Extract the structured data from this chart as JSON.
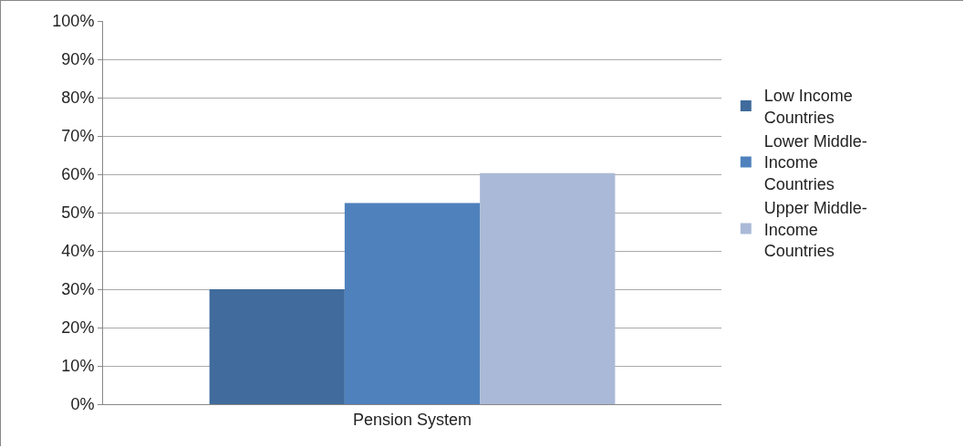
{
  "chart_data": {
    "type": "bar",
    "categories": [
      "Pension System"
    ],
    "series": [
      {
        "name": "Low Income Countries",
        "color": "#406b9c",
        "values": [
          30
        ]
      },
      {
        "name": "Lower Middle-Income Countries",
        "color": "#4f81bd",
        "values": [
          52.5
        ]
      },
      {
        "name": "Upper Middle-Income Countries",
        "color": "#aab9d7",
        "values": [
          60.3
        ]
      }
    ],
    "ylim": [
      0,
      100
    ],
    "yticks": [
      {
        "value": 0,
        "label": "0%"
      },
      {
        "value": 10,
        "label": "10%"
      },
      {
        "value": 20,
        "label": "20%"
      },
      {
        "value": 30,
        "label": "30%"
      },
      {
        "value": 40,
        "label": "40%"
      },
      {
        "value": 50,
        "label": "50%"
      },
      {
        "value": 60,
        "label": "60%"
      },
      {
        "value": 70,
        "label": "70%"
      },
      {
        "value": 80,
        "label": "80%"
      },
      {
        "value": 90,
        "label": "90%"
      },
      {
        "value": 100,
        "label": "100%"
      }
    ],
    "grid": "y",
    "legend": "right"
  }
}
